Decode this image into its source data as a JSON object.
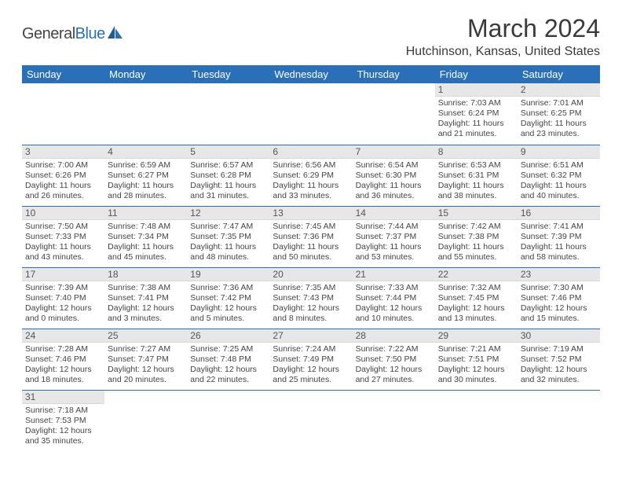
{
  "logo": {
    "text1": "General",
    "text2": "Blue"
  },
  "title": "March 2024",
  "location": "Hutchinson, Kansas, United States",
  "colors": {
    "header_bg": "#2a70b8",
    "header_fg": "#ffffff",
    "daynum_bg": "#e7e7e7",
    "row_border": "#2a70b8",
    "text": "#444444"
  },
  "weekdays": [
    "Sunday",
    "Monday",
    "Tuesday",
    "Wednesday",
    "Thursday",
    "Friday",
    "Saturday"
  ],
  "weeks": [
    [
      null,
      null,
      null,
      null,
      null,
      {
        "n": "1",
        "sr": "7:03 AM",
        "ss": "6:24 PM",
        "dl": "11 hours and 21 minutes."
      },
      {
        "n": "2",
        "sr": "7:01 AM",
        "ss": "6:25 PM",
        "dl": "11 hours and 23 minutes."
      }
    ],
    [
      {
        "n": "3",
        "sr": "7:00 AM",
        "ss": "6:26 PM",
        "dl": "11 hours and 26 minutes."
      },
      {
        "n": "4",
        "sr": "6:59 AM",
        "ss": "6:27 PM",
        "dl": "11 hours and 28 minutes."
      },
      {
        "n": "5",
        "sr": "6:57 AM",
        "ss": "6:28 PM",
        "dl": "11 hours and 31 minutes."
      },
      {
        "n": "6",
        "sr": "6:56 AM",
        "ss": "6:29 PM",
        "dl": "11 hours and 33 minutes."
      },
      {
        "n": "7",
        "sr": "6:54 AM",
        "ss": "6:30 PM",
        "dl": "11 hours and 36 minutes."
      },
      {
        "n": "8",
        "sr": "6:53 AM",
        "ss": "6:31 PM",
        "dl": "11 hours and 38 minutes."
      },
      {
        "n": "9",
        "sr": "6:51 AM",
        "ss": "6:32 PM",
        "dl": "11 hours and 40 minutes."
      }
    ],
    [
      {
        "n": "10",
        "sr": "7:50 AM",
        "ss": "7:33 PM",
        "dl": "11 hours and 43 minutes."
      },
      {
        "n": "11",
        "sr": "7:48 AM",
        "ss": "7:34 PM",
        "dl": "11 hours and 45 minutes."
      },
      {
        "n": "12",
        "sr": "7:47 AM",
        "ss": "7:35 PM",
        "dl": "11 hours and 48 minutes."
      },
      {
        "n": "13",
        "sr": "7:45 AM",
        "ss": "7:36 PM",
        "dl": "11 hours and 50 minutes."
      },
      {
        "n": "14",
        "sr": "7:44 AM",
        "ss": "7:37 PM",
        "dl": "11 hours and 53 minutes."
      },
      {
        "n": "15",
        "sr": "7:42 AM",
        "ss": "7:38 PM",
        "dl": "11 hours and 55 minutes."
      },
      {
        "n": "16",
        "sr": "7:41 AM",
        "ss": "7:39 PM",
        "dl": "11 hours and 58 minutes."
      }
    ],
    [
      {
        "n": "17",
        "sr": "7:39 AM",
        "ss": "7:40 PM",
        "dl": "12 hours and 0 minutes."
      },
      {
        "n": "18",
        "sr": "7:38 AM",
        "ss": "7:41 PM",
        "dl": "12 hours and 3 minutes."
      },
      {
        "n": "19",
        "sr": "7:36 AM",
        "ss": "7:42 PM",
        "dl": "12 hours and 5 minutes."
      },
      {
        "n": "20",
        "sr": "7:35 AM",
        "ss": "7:43 PM",
        "dl": "12 hours and 8 minutes."
      },
      {
        "n": "21",
        "sr": "7:33 AM",
        "ss": "7:44 PM",
        "dl": "12 hours and 10 minutes."
      },
      {
        "n": "22",
        "sr": "7:32 AM",
        "ss": "7:45 PM",
        "dl": "12 hours and 13 minutes."
      },
      {
        "n": "23",
        "sr": "7:30 AM",
        "ss": "7:46 PM",
        "dl": "12 hours and 15 minutes."
      }
    ],
    [
      {
        "n": "24",
        "sr": "7:28 AM",
        "ss": "7:46 PM",
        "dl": "12 hours and 18 minutes."
      },
      {
        "n": "25",
        "sr": "7:27 AM",
        "ss": "7:47 PM",
        "dl": "12 hours and 20 minutes."
      },
      {
        "n": "26",
        "sr": "7:25 AM",
        "ss": "7:48 PM",
        "dl": "12 hours and 22 minutes."
      },
      {
        "n": "27",
        "sr": "7:24 AM",
        "ss": "7:49 PM",
        "dl": "12 hours and 25 minutes."
      },
      {
        "n": "28",
        "sr": "7:22 AM",
        "ss": "7:50 PM",
        "dl": "12 hours and 27 minutes."
      },
      {
        "n": "29",
        "sr": "7:21 AM",
        "ss": "7:51 PM",
        "dl": "12 hours and 30 minutes."
      },
      {
        "n": "30",
        "sr": "7:19 AM",
        "ss": "7:52 PM",
        "dl": "12 hours and 32 minutes."
      }
    ],
    [
      {
        "n": "31",
        "sr": "7:18 AM",
        "ss": "7:53 PM",
        "dl": "12 hours and 35 minutes."
      },
      null,
      null,
      null,
      null,
      null,
      null
    ]
  ],
  "labels": {
    "sunrise": "Sunrise:",
    "sunset": "Sunset:",
    "daylight": "Daylight:"
  }
}
